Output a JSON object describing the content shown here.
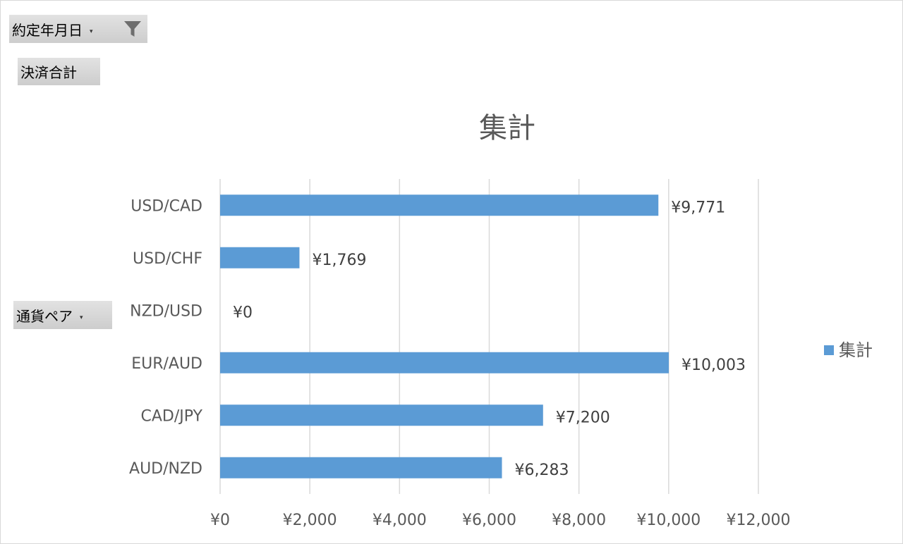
{
  "filters": {
    "date_field_label": "約定年月日",
    "value_field_label": "決済合計",
    "row_field_label": "通貨ペア"
  },
  "colors": {
    "bar": "#5b9bd5",
    "grid": "#d9d9d9",
    "field_button": "#d0d0d0"
  },
  "icons": {
    "filter": "funnel-icon",
    "dropdown": "chevron-down-icon"
  },
  "chart_data": {
    "type": "bar",
    "orientation": "horizontal",
    "title": "集計",
    "categories": [
      "USD/CAD",
      "USD/CHF",
      "NZD/USD",
      "EUR/AUD",
      "CAD/JPY",
      "AUD/NZD"
    ],
    "series": [
      {
        "name": "集計",
        "values": [
          9771,
          1769,
          0,
          10003,
          7200,
          6283
        ]
      }
    ],
    "data_labels": [
      "¥9,771",
      "¥1,769",
      "¥0",
      "¥10,003",
      "¥7,200",
      "¥6,283"
    ],
    "x_ticks": [
      "¥0",
      "¥2,000",
      "¥4,000",
      "¥6,000",
      "¥8,000",
      "¥10,000",
      "¥12,000"
    ],
    "xlim": [
      0,
      12000
    ],
    "grid": true,
    "legend_position": "right"
  }
}
